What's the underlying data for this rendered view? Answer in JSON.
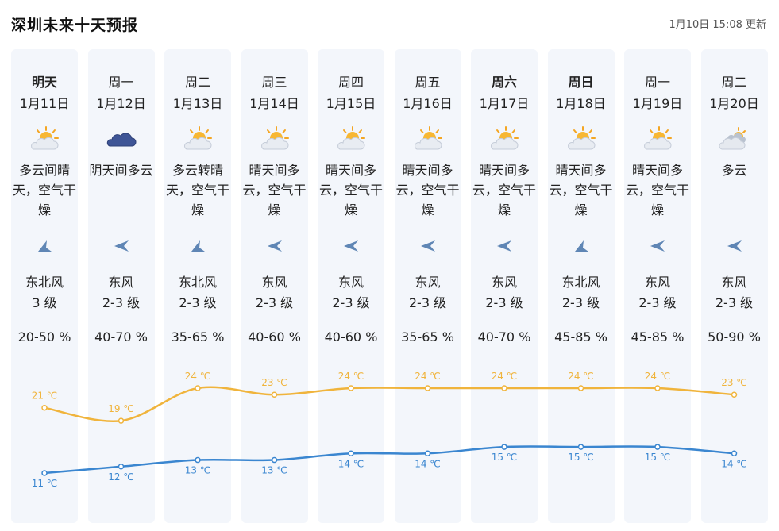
{
  "header": {
    "title": "深圳未来十天预报",
    "updated": "1月10日 15:08 更新"
  },
  "colors": {
    "high": "#f0b43c",
    "low": "#3a86d0",
    "column_bg": "#f3f6fb"
  },
  "days": [
    {
      "day": "明天",
      "bold": true,
      "date": "1月11日",
      "icon": "sun-cloud-icon",
      "desc": "多云间晴天，空气干燥",
      "wind_dir": "东北风",
      "wind_level": "3 级",
      "wind_arrow": "northeast-arrow-icon",
      "humidity": "20-50 %"
    },
    {
      "day": "周一",
      "bold": false,
      "date": "1月12日",
      "icon": "dark-cloud-icon",
      "desc": "阴天间多云",
      "wind_dir": "东风",
      "wind_level": "2-3 级",
      "wind_arrow": "east-arrow-icon",
      "humidity": "40-70 %"
    },
    {
      "day": "周二",
      "bold": false,
      "date": "1月13日",
      "icon": "sun-cloud-icon",
      "desc": "多云转晴天，空气干燥",
      "wind_dir": "东北风",
      "wind_level": "2-3 级",
      "wind_arrow": "northeast-arrow-icon",
      "humidity": "35-65 %"
    },
    {
      "day": "周三",
      "bold": false,
      "date": "1月14日",
      "icon": "sun-cloud-icon",
      "desc": "晴天间多云，空气干燥",
      "wind_dir": "东风",
      "wind_level": "2-3 级",
      "wind_arrow": "east-arrow-icon",
      "humidity": "40-60 %"
    },
    {
      "day": "周四",
      "bold": false,
      "date": "1月15日",
      "icon": "sun-cloud-icon",
      "desc": "晴天间多云，空气干燥",
      "wind_dir": "东风",
      "wind_level": "2-3 级",
      "wind_arrow": "east-arrow-icon",
      "humidity": "40-60 %"
    },
    {
      "day": "周五",
      "bold": false,
      "date": "1月16日",
      "icon": "sun-cloud-icon",
      "desc": "晴天间多云，空气干燥",
      "wind_dir": "东风",
      "wind_level": "2-3 级",
      "wind_arrow": "east-arrow-icon",
      "humidity": "35-65 %"
    },
    {
      "day": "周六",
      "bold": true,
      "date": "1月17日",
      "icon": "sun-cloud-icon",
      "desc": "晴天间多云，空气干燥",
      "wind_dir": "东风",
      "wind_level": "2-3 级",
      "wind_arrow": "east-arrow-icon",
      "humidity": "40-70 %"
    },
    {
      "day": "周日",
      "bold": true,
      "date": "1月18日",
      "icon": "sun-cloud-icon",
      "desc": "晴天间多云，空气干燥",
      "wind_dir": "东北风",
      "wind_level": "2-3 级",
      "wind_arrow": "northeast-arrow-icon",
      "humidity": "45-85 %"
    },
    {
      "day": "周一",
      "bold": false,
      "date": "1月19日",
      "icon": "sun-cloud-icon",
      "desc": "晴天间多云，空气干燥",
      "wind_dir": "东风",
      "wind_level": "2-3 级",
      "wind_arrow": "east-arrow-icon",
      "humidity": "45-85 %"
    },
    {
      "day": "周二",
      "bold": false,
      "date": "1月20日",
      "icon": "cloud-icon",
      "desc": "多云",
      "wind_dir": "东风",
      "wind_level": "2-3 级",
      "wind_arrow": "east-arrow-icon",
      "humidity": "50-90 %"
    }
  ],
  "chart_data": {
    "type": "line",
    "unit": "℃",
    "categories": [
      "1月11日",
      "1月12日",
      "1月13日",
      "1月14日",
      "1月15日",
      "1月16日",
      "1月17日",
      "1月18日",
      "1月19日",
      "1月20日"
    ],
    "series": [
      {
        "values": [
          21,
          19,
          24,
          23,
          24,
          24,
          24,
          24,
          24,
          23
        ]
      },
      {
        "values": [
          11,
          12,
          13,
          13,
          14,
          14,
          15,
          15,
          15,
          14
        ]
      }
    ]
  }
}
